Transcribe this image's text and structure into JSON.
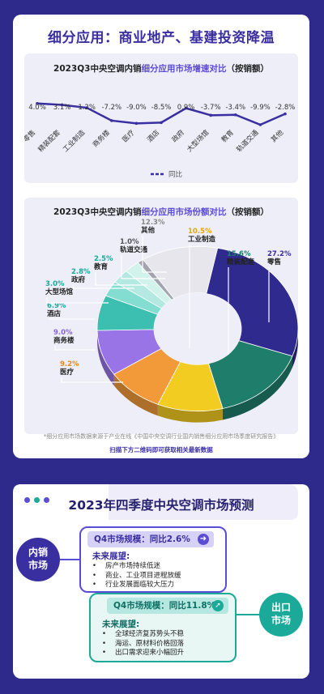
{
  "card1": {
    "title": "细分应用：商业地产、基建投资降温",
    "growth_title_pre": "2023Q3中央空调内销",
    "growth_title_hl": "细分应用市场增速对比",
    "growth_title_post": "（按销额）",
    "share_title_pre": "2023Q3中央空调内销",
    "share_title_hl": "细分应用市场份额对比",
    "share_title_post": "（按销额）",
    "footnote": "*细分应用市场数据来源于产业在线《中国中央空调行业国内销售细分应用市场季度研究报告》",
    "footnote_link": "扫描下方二维码即可获取相关最新数据"
  },
  "chart_data": [
    {
      "type": "line",
      "title": "2023Q3中央空调内销细分应用市场增速对比（按销额）",
      "categories": [
        "零售",
        "精装配套",
        "工业制造",
        "商务楼",
        "医疗",
        "酒店",
        "政府",
        "大型场馆",
        "教育",
        "轨道交通",
        "其他"
      ],
      "value_labels": [
        "4.0%",
        "3.1%",
        "1.2%",
        "-7.2%",
        "-9.0%",
        "-8.5%",
        "0.9%",
        "-3.7%",
        "-3.4%",
        "-9.9%",
        "-2.8%"
      ],
      "series": [
        {
          "name": "同比",
          "values": [
            4.0,
            3.1,
            1.2,
            -7.2,
            -9.0,
            -8.5,
            0.9,
            -3.7,
            -3.4,
            -9.9,
            -2.8
          ]
        }
      ],
      "ylim": [
        -12,
        6
      ],
      "legend": "bottom",
      "color": "#3a2fa0"
    },
    {
      "type": "pie",
      "title": "2023Q3中央空调内销细分应用市场份额对比（按销额）",
      "slices": [
        {
          "label": "零售",
          "value": 27.2,
          "text": "27.2%",
          "color": "#2f2a8e"
        },
        {
          "label": "精装配套",
          "value": 15.6,
          "text": "15.6%",
          "color": "#1f7e6b"
        },
        {
          "label": "工业制造",
          "value": 10.5,
          "text": "10.5%",
          "color": "#f3cc22"
        },
        {
          "label": "医疗",
          "value": 9.2,
          "text": "9.2%",
          "color": "#f29a3a"
        },
        {
          "label": "商务楼",
          "value": 9.0,
          "text": "9.0%",
          "color": "#9874e6"
        },
        {
          "label": "酒店",
          "value": 6.9,
          "text": "6.9%",
          "color": "#3cbfb0"
        },
        {
          "label": "大型场馆",
          "value": 3.0,
          "text": "3.0%",
          "color": "#84ddd1"
        },
        {
          "label": "政府",
          "value": 2.8,
          "text": "2.8%",
          "color": "#b4e9e1"
        },
        {
          "label": "教育",
          "value": 2.5,
          "text": "2.5%",
          "color": "#d2f2ec"
        },
        {
          "label": "轨道交通",
          "value": 1.0,
          "text": "1.0%",
          "color": "#a4a4b0"
        },
        {
          "label": "其他",
          "value": 12.3,
          "text": "12.3%",
          "color": "#e6e6ec"
        }
      ],
      "text_colors": {
        "零售": "#3a2fa0",
        "精装配套": "#1f7e6b",
        "工业制造": "#e6a800",
        "医疗": "#e88a1a",
        "商务楼": "#8a62e0",
        "酒店": "#1ba99a",
        "大型场馆": "#1ba99a",
        "政府": "#1ba99a",
        "教育": "#1ba99a",
        "轨道交通": "#555",
        "其他": "#888"
      }
    }
  ],
  "card2": {
    "title": "2023年四季度中央空调市场预测",
    "dot_colors": [
      "#5b4cd6",
      "#1ba99a",
      "#5b4cd6"
    ],
    "domestic": {
      "bubble": "内销\n市场",
      "head_label": "Q4市场规模：同比2.6%",
      "arrow": "➜",
      "sub": "未来展望:",
      "items": [
        "房产市场持续低迷",
        "商业、工业项目进程放缓",
        "行业发展面临较大压力"
      ]
    },
    "export": {
      "bubble": "出口\n市场",
      "head_label": "Q4市场规模：同比11.8%",
      "arrow": "➚",
      "sub": "未来展望:",
      "items": [
        "全球经济复苏势头不稳",
        "海运、原材料价格回落",
        "出口需求迎来小幅回升"
      ]
    }
  }
}
